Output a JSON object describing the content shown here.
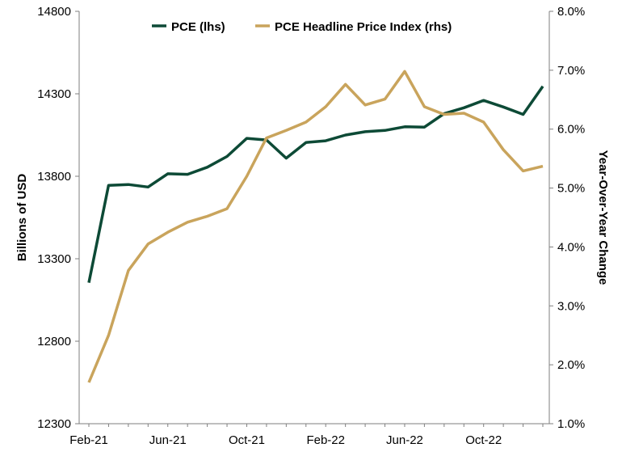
{
  "chart_data": {
    "type": "line",
    "title": "",
    "xlabel": "",
    "ylabel": "Billions of USD",
    "y2label": "Year-Over-Year Change",
    "x": [
      "Feb-21",
      "Mar-21",
      "Apr-21",
      "May-21",
      "Jun-21",
      "Jul-21",
      "Aug-21",
      "Sep-21",
      "Oct-21",
      "Nov-21",
      "Dec-21",
      "Jan-22",
      "Feb-22",
      "Mar-22",
      "Apr-22",
      "May-22",
      "Jun-22",
      "Jul-22",
      "Aug-22",
      "Sep-22",
      "Oct-22",
      "Nov-22",
      "Dec-22",
      "Jan-23"
    ],
    "x_tick_labels": [
      "Feb-21",
      "Jun-21",
      "Oct-21",
      "Feb-22",
      "Jun-22",
      "Oct-22"
    ],
    "ylim": [
      12300,
      14800
    ],
    "y_ticks": [
      "12300",
      "12800",
      "13300",
      "13800",
      "14300",
      "14800"
    ],
    "y2lim": [
      1.0,
      8.0
    ],
    "y2_ticks": [
      "1.0%",
      "2.0%",
      "3.0%",
      "4.0%",
      "5.0%",
      "6.0%",
      "7.0%",
      "8.0%"
    ],
    "legend_position": "top-center",
    "grid": false,
    "series": [
      {
        "name": "PCE (lhs)",
        "axis": "left",
        "color": "#0d4a36",
        "values": [
          13155,
          13745,
          13750,
          13735,
          13815,
          13812,
          13855,
          13920,
          14030,
          14020,
          13910,
          14005,
          14015,
          14050,
          14070,
          14078,
          14100,
          14098,
          14180,
          14215,
          14260,
          14220,
          14175,
          14345
        ]
      },
      {
        "name": "PCE Headline Price Index (rhs)",
        "axis": "right",
        "color": "#c9a45c",
        "values": [
          1.7,
          2.5,
          3.6,
          4.05,
          4.25,
          4.42,
          4.52,
          4.65,
          5.2,
          5.85,
          5.98,
          6.12,
          6.38,
          6.76,
          6.41,
          6.51,
          6.98,
          6.38,
          6.25,
          6.27,
          6.12,
          5.65,
          5.29,
          5.37
        ]
      }
    ]
  }
}
